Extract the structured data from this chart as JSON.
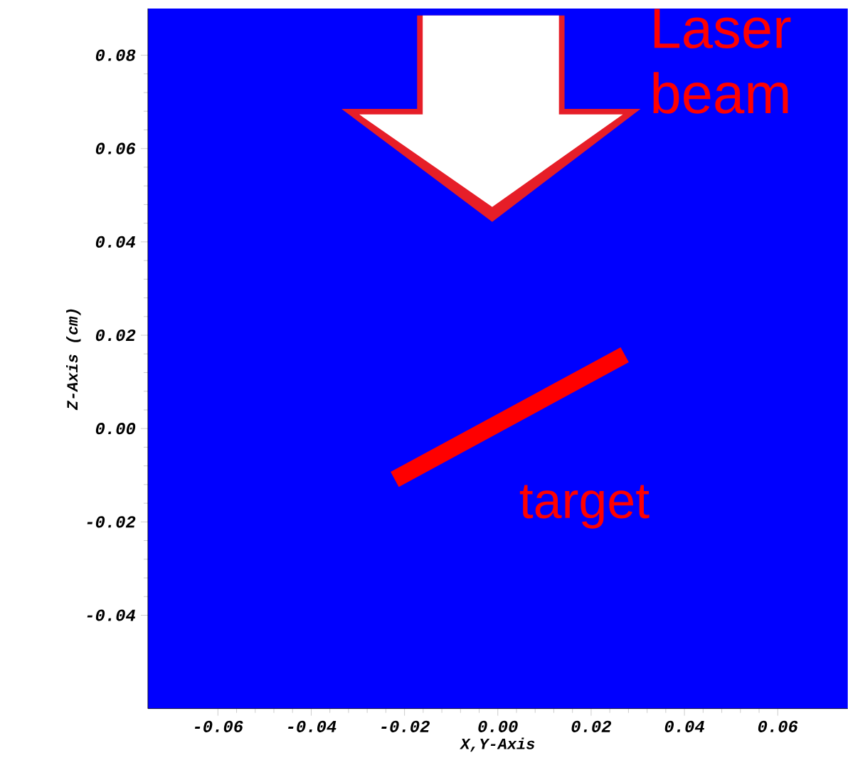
{
  "chart_data": {
    "type": "line",
    "xlabel": "X,Y-Axis",
    "ylabel": "Z-Axis (cm)",
    "annotations": [
      "Laser beam",
      "target"
    ],
    "x": [
      -0.0221,
      0.0272
    ],
    "series": [
      {
        "color": "#ff0000",
        "values": [
          -0.0109,
          0.0158
        ]
      }
    ],
    "xlim": [
      -0.075,
      0.075
    ],
    "ylim": [
      -0.06,
      0.09
    ],
    "xticks": [
      {
        "value": -0.06,
        "label": "-0.06"
      },
      {
        "value": -0.04,
        "label": "-0.04"
      },
      {
        "value": -0.02,
        "label": "-0.02"
      },
      {
        "value": 0,
        "label": "0.00"
      },
      {
        "value": 0.02,
        "label": "0.02"
      },
      {
        "value": 0.04,
        "label": "0.04"
      },
      {
        "value": 0.06,
        "label": "0.06"
      }
    ],
    "yticks": [
      {
        "value": -0.04,
        "label": "-0.04"
      },
      {
        "value": -0.02,
        "label": "-0.02"
      },
      {
        "value": 0,
        "label": "0.00"
      },
      {
        "value": 0.02,
        "label": "0.02"
      },
      {
        "value": 0.04,
        "label": "0.04"
      },
      {
        "value": 0.06,
        "label": "0.06"
      },
      {
        "value": 0.08,
        "label": "0.08"
      }
    ],
    "marker": "none",
    "line_style": "solid"
  }
}
